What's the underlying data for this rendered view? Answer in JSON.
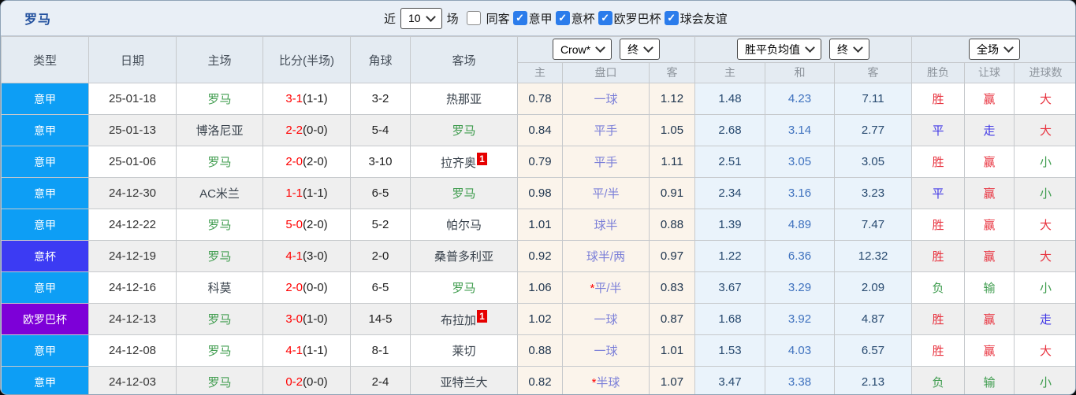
{
  "header": {
    "team": "罗马",
    "recent_label": "近",
    "matches_count": "10",
    "matches_label": "场",
    "filters": [
      {
        "label": "同客",
        "checked": false
      },
      {
        "label": "意甲",
        "checked": true
      },
      {
        "label": "意杯",
        "checked": true
      },
      {
        "label": "欧罗巴杯",
        "checked": true
      },
      {
        "label": "球会友谊",
        "checked": true
      }
    ]
  },
  "table": {
    "columns": [
      "类型",
      "日期",
      "主场",
      "比分(半场)",
      "角球",
      "客场"
    ],
    "handicap_group": {
      "bookmaker_select": "Crow*",
      "time_select": "终",
      "subcols": [
        "主",
        "盘口",
        "客"
      ]
    },
    "odds_group": {
      "label_select": "胜平负均值",
      "time_select": "终",
      "subcols": [
        "主",
        "和",
        "客"
      ]
    },
    "result_group": {
      "scope_select": "全场",
      "subcols": [
        "胜负",
        "让球",
        "进球数"
      ]
    },
    "leagues": {
      "意甲": "#0D9EF5",
      "意杯": "#3C3BF3",
      "欧罗巴杯": "#7D00D8"
    },
    "result_colors": {
      "胜": "#E8333F",
      "赢": "#E8333F",
      "大": "#E8333F",
      "平": "#4239E6",
      "走": "#4239E6",
      "负": "#3E9C4E",
      "输": "#3E9C4E",
      "小": "#3E9C4E"
    },
    "rows": [
      {
        "league": "意甲",
        "date": "25-01-18",
        "home": "罗马",
        "score": "3-1",
        "half": "(1-1)",
        "corner": "3-2",
        "away": "热那亚",
        "away_card": "",
        "ah_home": "0.78",
        "ah_line": "一球",
        "ah_away": "1.12",
        "eu_home": "1.48",
        "eu_draw": "4.23",
        "eu_away": "7.11",
        "result": "胜",
        "handicap_result": "赢",
        "goals_result": "大"
      },
      {
        "league": "意甲",
        "date": "25-01-13",
        "home": "博洛尼亚",
        "score": "2-2",
        "half": "(0-0)",
        "corner": "5-4",
        "away": "罗马",
        "away_card": "",
        "ah_home": "0.84",
        "ah_line": "平手",
        "ah_away": "1.05",
        "eu_home": "2.68",
        "eu_draw": "3.14",
        "eu_away": "2.77",
        "result": "平",
        "handicap_result": "走",
        "goals_result": "大"
      },
      {
        "league": "意甲",
        "date": "25-01-06",
        "home": "罗马",
        "score": "2-0",
        "half": "(2-0)",
        "corner": "3-10",
        "away": "拉齐奥",
        "away_card": "1",
        "ah_home": "0.79",
        "ah_line": "平手",
        "ah_away": "1.11",
        "eu_home": "2.51",
        "eu_draw": "3.05",
        "eu_away": "3.05",
        "result": "胜",
        "handicap_result": "赢",
        "goals_result": "小"
      },
      {
        "league": "意甲",
        "date": "24-12-30",
        "home": "AC米兰",
        "score": "1-1",
        "half": "(1-1)",
        "corner": "6-5",
        "away": "罗马",
        "away_card": "",
        "ah_home": "0.98",
        "ah_line": "平/半",
        "ah_away": "0.91",
        "eu_home": "2.34",
        "eu_draw": "3.16",
        "eu_away": "3.23",
        "result": "平",
        "handicap_result": "赢",
        "goals_result": "小"
      },
      {
        "league": "意甲",
        "date": "24-12-22",
        "home": "罗马",
        "score": "5-0",
        "half": "(2-0)",
        "corner": "5-2",
        "away": "帕尔马",
        "away_card": "",
        "ah_home": "1.01",
        "ah_line": "球半",
        "ah_away": "0.88",
        "eu_home": "1.39",
        "eu_draw": "4.89",
        "eu_away": "7.47",
        "result": "胜",
        "handicap_result": "赢",
        "goals_result": "大"
      },
      {
        "league": "意杯",
        "date": "24-12-19",
        "home": "罗马",
        "score": "4-1",
        "half": "(3-0)",
        "corner": "2-0",
        "away": "桑普多利亚",
        "away_card": "",
        "ah_home": "0.92",
        "ah_line": "球半/两",
        "ah_away": "0.97",
        "eu_home": "1.22",
        "eu_draw": "6.36",
        "eu_away": "12.32",
        "result": "胜",
        "handicap_result": "赢",
        "goals_result": "大"
      },
      {
        "league": "意甲",
        "date": "24-12-16",
        "home": "科莫",
        "score": "2-0",
        "half": "(0-0)",
        "corner": "6-5",
        "away": "罗马",
        "away_card": "",
        "ah_home": "1.06",
        "ah_line": "*平/半",
        "ah_away": "0.83",
        "eu_home": "3.67",
        "eu_draw": "3.29",
        "eu_away": "2.09",
        "result": "负",
        "handicap_result": "输",
        "goals_result": "小"
      },
      {
        "league": "欧罗巴杯",
        "date": "24-12-13",
        "home": "罗马",
        "score": "3-0",
        "half": "(1-0)",
        "corner": "14-5",
        "away": "布拉加",
        "away_card": "1",
        "ah_home": "1.02",
        "ah_line": "一球",
        "ah_away": "0.87",
        "eu_home": "1.68",
        "eu_draw": "3.92",
        "eu_away": "4.87",
        "result": "胜",
        "handicap_result": "赢",
        "goals_result": "走"
      },
      {
        "league": "意甲",
        "date": "24-12-08",
        "home": "罗马",
        "score": "4-1",
        "half": "(1-1)",
        "corner": "8-1",
        "away": "莱切",
        "away_card": "",
        "ah_home": "0.88",
        "ah_line": "一球",
        "ah_away": "1.01",
        "eu_home": "1.53",
        "eu_draw": "4.03",
        "eu_away": "6.57",
        "result": "胜",
        "handicap_result": "赢",
        "goals_result": "大"
      },
      {
        "league": "意甲",
        "date": "24-12-03",
        "home": "罗马",
        "score": "0-2",
        "half": "(0-0)",
        "corner": "2-4",
        "away": "亚特兰大",
        "away_card": "",
        "ah_home": "0.82",
        "ah_line": "*半球",
        "ah_away": "1.07",
        "eu_home": "3.47",
        "eu_draw": "3.38",
        "eu_away": "2.13",
        "result": "负",
        "handicap_result": "输",
        "goals_result": "小"
      }
    ]
  }
}
